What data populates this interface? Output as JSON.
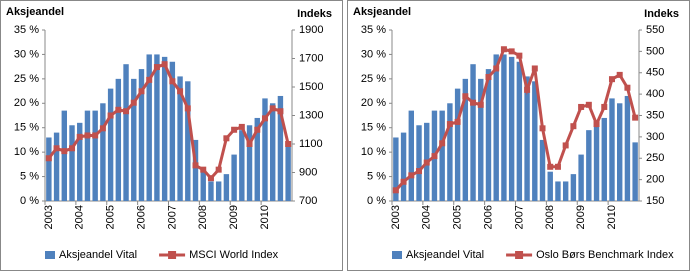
{
  "chart_data": [
    {
      "type": "combo",
      "y_label": "Aksjeandel",
      "y2_label": "Indeks",
      "categories": [
        "2003",
        null,
        null,
        null,
        "2004",
        null,
        null,
        null,
        "2005",
        null,
        null,
        null,
        "2006",
        null,
        null,
        null,
        "2007",
        null,
        null,
        null,
        "2008",
        null,
        null,
        null,
        "2009",
        null,
        null,
        null,
        "2010",
        null,
        null,
        null
      ],
      "series": [
        {
          "name": "Aksjeandel Vital",
          "color": "#4f81bd",
          "values": [
            13,
            14,
            18.5,
            15.5,
            16,
            18.5,
            18.5,
            20,
            23,
            25,
            28,
            25,
            27,
            30,
            30,
            29.5,
            28.5,
            25.5,
            24.5,
            12.5,
            6,
            4,
            4,
            5.5,
            9.5,
            14.5,
            15.5,
            17,
            21,
            20,
            21.5,
            12
          ]
        },
        {
          "name": "MSCI World Index",
          "color": "#c0504d",
          "axis": "y2",
          "values": [
            1000,
            1070,
            1050,
            1070,
            1150,
            1160,
            1160,
            1210,
            1300,
            1340,
            1330,
            1390,
            1470,
            1550,
            1640,
            1660,
            1540,
            1470,
            1350,
            950,
            920,
            860,
            920,
            1140,
            1200,
            1220,
            1100,
            1200,
            1280,
            1350,
            1330,
            1100
          ]
        }
      ],
      "ylim": [
        0,
        35
      ],
      "yticks": [
        {
          "value": 0,
          "label": "0 %"
        },
        {
          "value": 5,
          "label": "5 %"
        },
        {
          "value": 10,
          "label": "10 %"
        },
        {
          "value": 15,
          "label": "15 %"
        },
        {
          "value": 20,
          "label": "20 %"
        },
        {
          "value": 25,
          "label": "25 %"
        },
        {
          "value": 30,
          "label": "30 %"
        },
        {
          "value": 35,
          "label": "35 %"
        }
      ],
      "y2lim": [
        700,
        1900
      ],
      "y2ticks": [
        700,
        900,
        1100,
        1300,
        1500,
        1700,
        1900
      ]
    },
    {
      "type": "combo",
      "y_label": "Aksjeandel",
      "y2_label": "Indeks",
      "categories": [
        "2003",
        null,
        null,
        null,
        "2004",
        null,
        null,
        null,
        "2005",
        null,
        null,
        null,
        "2006",
        null,
        null,
        null,
        "2007",
        null,
        null,
        null,
        "2008",
        null,
        null,
        null,
        "2009",
        null,
        null,
        null,
        "2010",
        null,
        null,
        null
      ],
      "series": [
        {
          "name": "Aksjeandel Vital",
          "color": "#4f81bd",
          "values": [
            13,
            14,
            18.5,
            15.5,
            16,
            18.5,
            18.5,
            20,
            23,
            25,
            28,
            25,
            27,
            30,
            30,
            29.5,
            28.5,
            25.5,
            24.5,
            12.5,
            6,
            4,
            4,
            5.5,
            9.5,
            14.5,
            15.5,
            17,
            21,
            20,
            21.5,
            12
          ]
        },
        {
          "name": "Oslo Børs Benchmark Index",
          "color": "#c0504d",
          "axis": "y2",
          "values": [
            175,
            195,
            210,
            220,
            240,
            255,
            285,
            330,
            335,
            395,
            380,
            375,
            440,
            460,
            505,
            500,
            490,
            410,
            460,
            320,
            230,
            230,
            280,
            325,
            370,
            375,
            330,
            370,
            435,
            445,
            415,
            345
          ]
        }
      ],
      "ylim": [
        0,
        35
      ],
      "yticks": [
        {
          "value": 0,
          "label": "0 %"
        },
        {
          "value": 5,
          "label": "5 %"
        },
        {
          "value": 10,
          "label": "10 %"
        },
        {
          "value": 15,
          "label": "15 %"
        },
        {
          "value": 20,
          "label": "20 %"
        },
        {
          "value": 25,
          "label": "25 %"
        },
        {
          "value": 30,
          "label": "30 %"
        },
        {
          "value": 35,
          "label": "35 %"
        }
      ],
      "y2lim": [
        150,
        550
      ],
      "y2ticks": [
        150,
        200,
        250,
        300,
        350,
        400,
        450,
        500,
        550
      ]
    }
  ]
}
